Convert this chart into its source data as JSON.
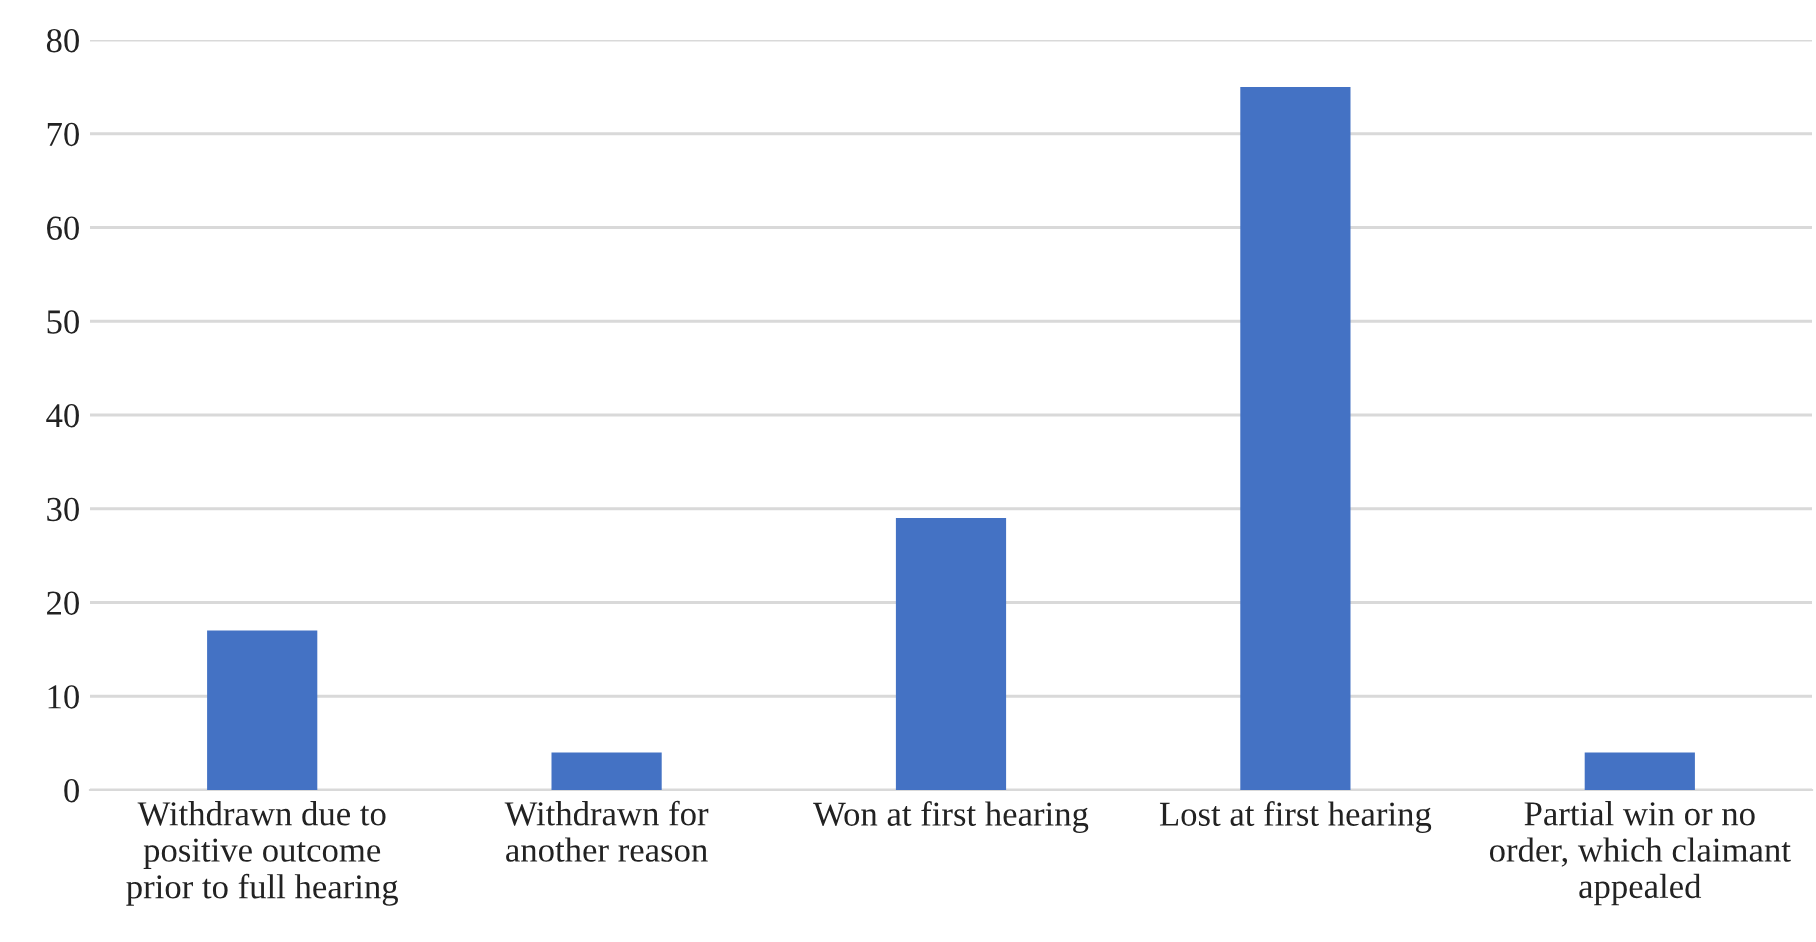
{
  "chart_data": {
    "type": "bar",
    "categories": [
      "Withdrawn due to\npositive outcome\nprior to full hearing",
      "Withdrawn for\nanother reason",
      "Won at first hearing",
      "Lost at first hearing",
      "Partial win or no\norder, which claimant\nappealed"
    ],
    "values": [
      17,
      4,
      29,
      75,
      4
    ],
    "color": "#4472c4",
    "ylim": [
      0,
      80
    ],
    "yticks": [
      0,
      10,
      20,
      30,
      40,
      50,
      60,
      70,
      80
    ],
    "grid": "y",
    "legend": false
  }
}
